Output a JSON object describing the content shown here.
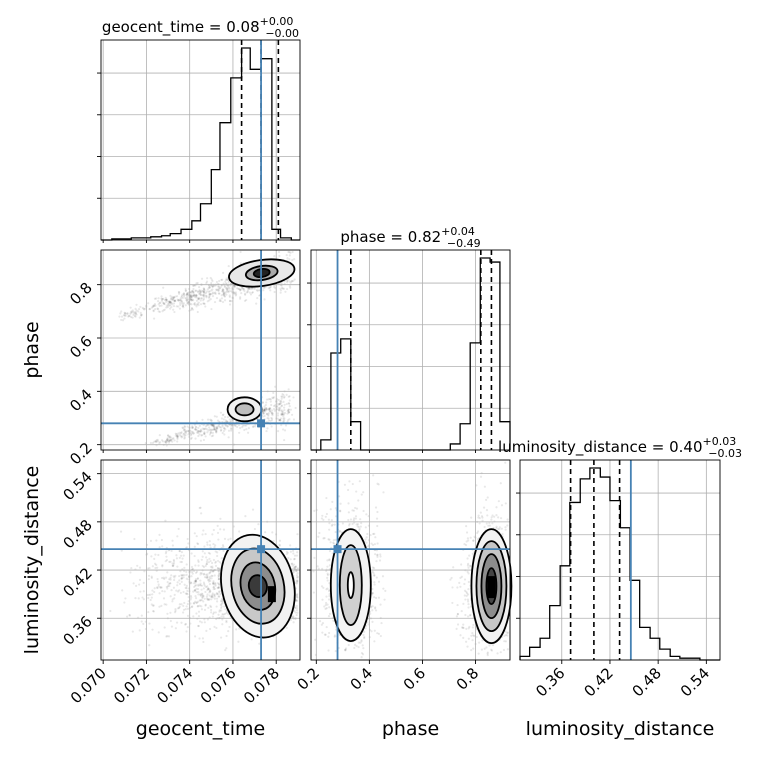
{
  "chart_data": {
    "type": "corner",
    "parameters": [
      {
        "name": "geocent_time",
        "median": "0.08",
        "err_plus": "+0.00",
        "err_minus": "−0.00",
        "range": [
          0.0699,
          0.0791
        ],
        "ticks": [
          0.07,
          0.072,
          0.074,
          0.076,
          0.078
        ],
        "tick_labels": [
          "0.070",
          "0.072",
          "0.074",
          "0.076",
          "0.078"
        ],
        "quantiles": [
          0.0764,
          0.0773,
          0.0781
        ],
        "injection": 0.0773
      },
      {
        "name": "phase",
        "median": "0.82",
        "err_plus": "+0.04",
        "err_minus": "−0.49",
        "range": [
          0.18,
          0.93
        ],
        "ticks": [
          0.2,
          0.4,
          0.6,
          0.8
        ],
        "tick_labels": [
          "0.2",
          "0.4",
          "0.6",
          "0.8"
        ],
        "quantiles": [
          0.33,
          0.82,
          0.86
        ],
        "injection": 0.28
      },
      {
        "name": "luminosity_distance",
        "median": "0.40",
        "err_plus": "+0.03",
        "err_minus": "−0.03",
        "range": [
          0.308,
          0.557
        ],
        "ticks": [
          0.36,
          0.42,
          0.48,
          0.54
        ],
        "tick_labels": [
          "0.36",
          "0.42",
          "0.48",
          "0.54"
        ],
        "quantiles": [
          0.371,
          0.4,
          0.432
        ],
        "injection": 0.446
      }
    ],
    "histograms": {
      "geocent_time": {
        "bins": [
          0.0699,
          0.0704,
          0.0708,
          0.0713,
          0.0718,
          0.0722,
          0.0727,
          0.0731,
          0.0736,
          0.0741,
          0.0745,
          0.075,
          0.0754,
          0.0759,
          0.0764,
          0.0768,
          0.0773,
          0.0778,
          0.0782,
          0.0787,
          0.0791
        ],
        "counts": [
          0,
          0.5,
          0.5,
          1,
          1,
          1.5,
          2,
          3,
          5,
          9,
          17,
          33,
          55,
          76,
          90,
          80,
          85,
          5,
          1,
          0
        ]
      },
      "phase": {
        "bins": [
          0.18,
          0.217,
          0.255,
          0.292,
          0.33,
          0.367,
          0.405,
          0.442,
          0.48,
          0.518,
          0.555,
          0.592,
          0.63,
          0.668,
          0.705,
          0.742,
          0.78,
          0.818,
          0.855,
          0.892,
          0.93
        ],
        "counts": [
          0,
          5,
          48,
          55,
          14,
          0,
          0,
          0,
          0,
          0,
          0,
          0,
          0,
          0,
          3,
          13,
          53,
          95,
          93,
          14
        ]
      },
      "luminosity_distance": {
        "bins": [
          0.308,
          0.32,
          0.333,
          0.345,
          0.358,
          0.37,
          0.383,
          0.395,
          0.408,
          0.42,
          0.433,
          0.445,
          0.457,
          0.47,
          0.482,
          0.495,
          0.507,
          0.52,
          0.532,
          0.545,
          0.557
        ],
        "counts": [
          2,
          7,
          12,
          30,
          52,
          87,
          100,
          106,
          101,
          88,
          73,
          44,
          18,
          12,
          6,
          2,
          1,
          1,
          0,
          0
        ]
      }
    },
    "density_2d": {
      "phase_vs_geocent_time": {
        "modes": [
          {
            "x": 0.0777,
            "y": 0.855
          },
          {
            "x": 0.077,
            "y": 0.34
          }
        ]
      },
      "luminosity_distance_vs_geocent_time": {
        "modes": [
          {
            "x": 0.0778,
            "y": 0.39
          }
        ]
      },
      "luminosity_distance_vs_phase": {
        "modes": [
          {
            "x": 0.33,
            "y": 0.405
          },
          {
            "x": 0.86,
            "y": 0.4
          }
        ]
      }
    },
    "injection_color": "#4682b4",
    "grid": true
  }
}
